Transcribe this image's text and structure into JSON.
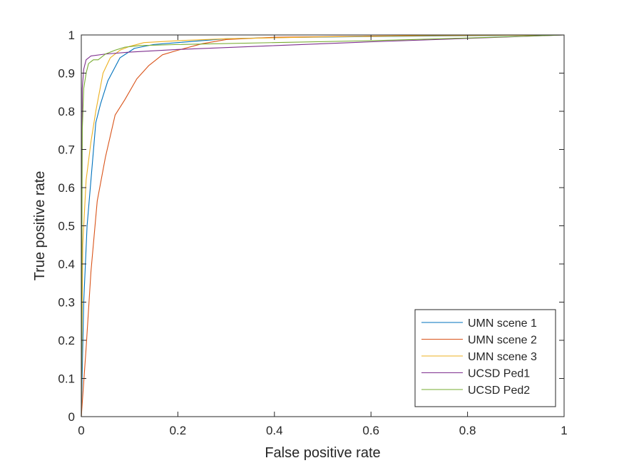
{
  "chart_data": {
    "type": "line",
    "title": "",
    "xlabel": "False positive rate",
    "ylabel": "True positive rate",
    "xlim": [
      0,
      1
    ],
    "ylim": [
      0,
      1
    ],
    "xticks": [
      "0",
      "0.2",
      "0.4",
      "0.6",
      "0.8",
      "1"
    ],
    "yticks": [
      "0",
      "0.1",
      "0.2",
      "0.3",
      "0.4",
      "0.5",
      "0.6",
      "0.7",
      "0.8",
      "0.9",
      "1"
    ],
    "grid": false,
    "legend_position": "bottom-right",
    "series": [
      {
        "name": "UMN scene 1",
        "color": "#0072BD",
        "x": [
          0,
          0.005,
          0.012,
          0.02,
          0.03,
          0.04,
          0.055,
          0.08,
          0.11,
          0.15,
          0.2,
          0.3,
          0.4,
          0.6,
          0.8,
          1.0
        ],
        "y": [
          0,
          0.3,
          0.5,
          0.62,
          0.77,
          0.82,
          0.88,
          0.94,
          0.965,
          0.975,
          0.98,
          0.99,
          0.993,
          0.996,
          0.998,
          1.0
        ]
      },
      {
        "name": "UMN scene 2",
        "color": "#D95319",
        "x": [
          0,
          0.01,
          0.02,
          0.033,
          0.05,
          0.07,
          0.09,
          0.115,
          0.14,
          0.168,
          0.2,
          0.25,
          0.3,
          0.4,
          0.6,
          0.8,
          1.0
        ],
        "y": [
          0,
          0.18,
          0.38,
          0.565,
          0.68,
          0.79,
          0.83,
          0.885,
          0.92,
          0.948,
          0.96,
          0.977,
          0.988,
          0.994,
          0.997,
          0.999,
          1.0
        ]
      },
      {
        "name": "UMN scene 3",
        "color": "#EDB120",
        "x": [
          0,
          0.003,
          0.01,
          0.02,
          0.03,
          0.045,
          0.06,
          0.08,
          0.1,
          0.13,
          0.2,
          0.3,
          0.5,
          0.7,
          1.0
        ],
        "y": [
          0,
          0.45,
          0.62,
          0.72,
          0.8,
          0.9,
          0.94,
          0.96,
          0.97,
          0.98,
          0.985,
          0.99,
          0.995,
          0.998,
          1.0
        ]
      },
      {
        "name": "UCSD Ped1",
        "color": "#7E2F8E",
        "x": [
          0,
          0.002,
          0.005,
          0.01,
          0.02,
          0.05,
          0.1,
          0.2,
          0.4,
          0.6,
          0.8,
          1.0
        ],
        "y": [
          0,
          0.86,
          0.91,
          0.935,
          0.945,
          0.95,
          0.955,
          0.962,
          0.972,
          0.982,
          0.991,
          1.0
        ]
      },
      {
        "name": "UCSD Ped2",
        "color": "#77AC30",
        "x": [
          0,
          0.002,
          0.005,
          0.01,
          0.015,
          0.025,
          0.035,
          0.05,
          0.07,
          0.09,
          0.12,
          0.2,
          0.4,
          0.6,
          0.8,
          1.0
        ],
        "y": [
          0,
          0.75,
          0.86,
          0.9,
          0.925,
          0.935,
          0.935,
          0.95,
          0.96,
          0.968,
          0.972,
          0.975,
          0.98,
          0.985,
          0.992,
          1.0
        ]
      }
    ]
  }
}
